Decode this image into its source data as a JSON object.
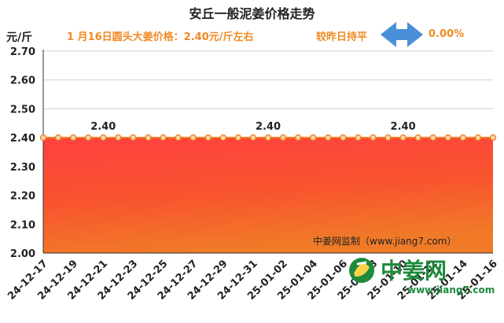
{
  "header": {
    "title": "安丘一般泥姜价格走势",
    "unit": "元/斤",
    "price_note": "1 月16日圆头大姜价格：2.40元/斤左右",
    "compare_note": "较昨日持平",
    "change_pct": "0.00%"
  },
  "watermark": "中姜网监制（www.jiang7.com）",
  "logo": {
    "brand": "中姜网",
    "url": "www.jiang7.com",
    "icon": "ginger-logo-icon"
  },
  "colors": {
    "accent": "#f08a24",
    "line": "#f07a20",
    "arrow": "#4a90d9",
    "fill_top": "#ff4040",
    "fill_bottom": "#f07a28"
  },
  "chart_data": {
    "type": "area",
    "ylabel": "元/斤",
    "ylim": [
      2.0,
      2.7
    ],
    "yticks": [
      "2.00",
      "2.10",
      "2.20",
      "2.30",
      "2.40",
      "2.50",
      "2.60",
      "2.70"
    ],
    "x": [
      "24-12-17",
      "24-12-18",
      "24-12-19",
      "24-12-20",
      "24-12-21",
      "24-12-22",
      "24-12-23",
      "24-12-24",
      "24-12-25",
      "24-12-26",
      "24-12-27",
      "24-12-28",
      "24-12-29",
      "24-12-30",
      "24-12-31",
      "25-01-01",
      "25-01-02",
      "25-01-03",
      "25-01-04",
      "25-01-05",
      "25-01-06",
      "25-01-07",
      "25-01-08",
      "25-01-09",
      "25-01-10",
      "25-01-11",
      "25-01-12",
      "25-01-13",
      "25-01-14",
      "25-01-15",
      "25-01-16"
    ],
    "xticks": [
      "24-12-17",
      "24-12-19",
      "24-12-21",
      "24-12-23",
      "24-12-25",
      "24-12-27",
      "24-12-29",
      "24-12-31",
      "25-01-02",
      "25-01-04",
      "25-01-06",
      "25-01-08",
      "25-01-10",
      "25-01-12",
      "25-01-14",
      "25-01-16"
    ],
    "values": [
      2.4,
      2.4,
      2.4,
      2.4,
      2.4,
      2.4,
      2.4,
      2.4,
      2.4,
      2.4,
      2.4,
      2.4,
      2.4,
      2.4,
      2.4,
      2.4,
      2.4,
      2.4,
      2.4,
      2.4,
      2.4,
      2.4,
      2.4,
      2.4,
      2.4,
      2.4,
      2.4,
      2.4,
      2.4,
      2.4,
      2.4
    ],
    "data_labels": [
      {
        "x": "24-12-21",
        "text": "2.40"
      },
      {
        "x": "25-01-01",
        "text": "2.40"
      },
      {
        "x": "25-01-10",
        "text": "2.40"
      }
    ],
    "grid": true,
    "legend": "none"
  }
}
